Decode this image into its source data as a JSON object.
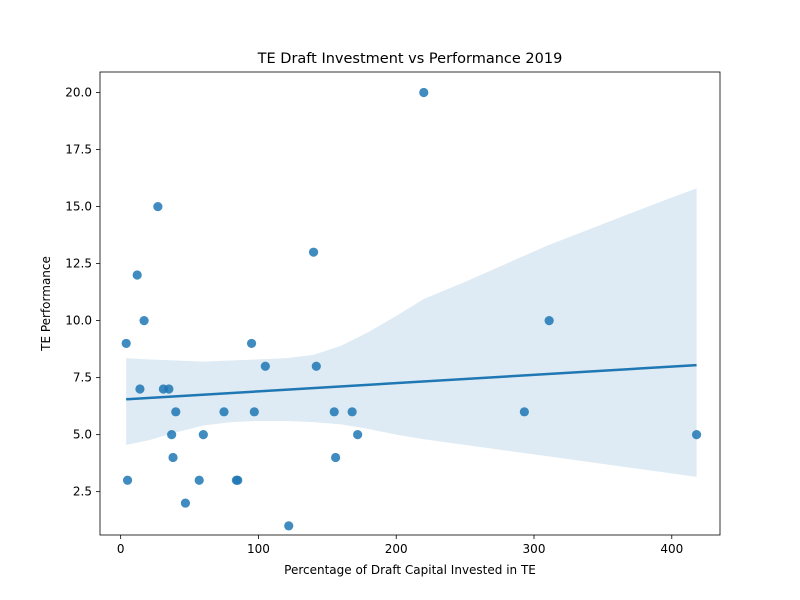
{
  "chart_data": {
    "type": "scatter",
    "title": "TE Draft Investment vs Performance 2019",
    "xlabel": "Percentage of Draft Capital Invested in TE",
    "ylabel": "TE Performance",
    "xlim": [
      -15,
      435
    ],
    "ylim": [
      0.6,
      20.9
    ],
    "xticks": [
      0,
      100,
      200,
      300,
      400
    ],
    "yticks": [
      2.5,
      5.0,
      7.5,
      10.0,
      12.5,
      15.0,
      17.5,
      20.0
    ],
    "ytick_labels": [
      "2.5",
      "5.0",
      "7.5",
      "10.0",
      "12.5",
      "15.0",
      "17.5",
      "20.0"
    ],
    "grid": false,
    "point_color": "#1f77b4",
    "line_color": "#1f77b4",
    "band_color": "#1f77b4",
    "points": [
      {
        "x": 4,
        "y": 9
      },
      {
        "x": 5,
        "y": 3
      },
      {
        "x": 12,
        "y": 12
      },
      {
        "x": 14,
        "y": 7
      },
      {
        "x": 17,
        "y": 10
      },
      {
        "x": 27,
        "y": 15
      },
      {
        "x": 31,
        "y": 7
      },
      {
        "x": 35,
        "y": 7
      },
      {
        "x": 37,
        "y": 5
      },
      {
        "x": 38,
        "y": 4
      },
      {
        "x": 40,
        "y": 6
      },
      {
        "x": 47,
        "y": 2
      },
      {
        "x": 57,
        "y": 3
      },
      {
        "x": 60,
        "y": 5
      },
      {
        "x": 75,
        "y": 6
      },
      {
        "x": 84,
        "y": 3
      },
      {
        "x": 85,
        "y": 3
      },
      {
        "x": 95,
        "y": 9
      },
      {
        "x": 97,
        "y": 6
      },
      {
        "x": 105,
        "y": 8
      },
      {
        "x": 122,
        "y": 1
      },
      {
        "x": 140,
        "y": 13
      },
      {
        "x": 142,
        "y": 8
      },
      {
        "x": 155,
        "y": 6
      },
      {
        "x": 156,
        "y": 4
      },
      {
        "x": 168,
        "y": 6
      },
      {
        "x": 172,
        "y": 5
      },
      {
        "x": 220,
        "y": 20
      },
      {
        "x": 293,
        "y": 6
      },
      {
        "x": 311,
        "y": 10
      },
      {
        "x": 418,
        "y": 5
      }
    ],
    "regression": {
      "x": [
        4,
        418
      ],
      "y": [
        6.55,
        8.05
      ]
    },
    "confidence_band": {
      "x": [
        4,
        20,
        40,
        60,
        80,
        100,
        120,
        140,
        160,
        180,
        200,
        220,
        250,
        280,
        310,
        340,
        370,
        400,
        418
      ],
      "upper": [
        8.35,
        8.3,
        8.25,
        8.2,
        8.25,
        8.3,
        8.35,
        8.5,
        8.9,
        9.5,
        10.2,
        10.95,
        11.7,
        12.5,
        13.3,
        14.0,
        14.7,
        15.4,
        15.8
      ],
      "lower": [
        4.55,
        4.75,
        5.1,
        5.4,
        5.55,
        5.6,
        5.6,
        5.55,
        5.45,
        5.25,
        5.0,
        4.8,
        4.55,
        4.3,
        4.05,
        3.8,
        3.55,
        3.3,
        3.15
      ]
    }
  }
}
